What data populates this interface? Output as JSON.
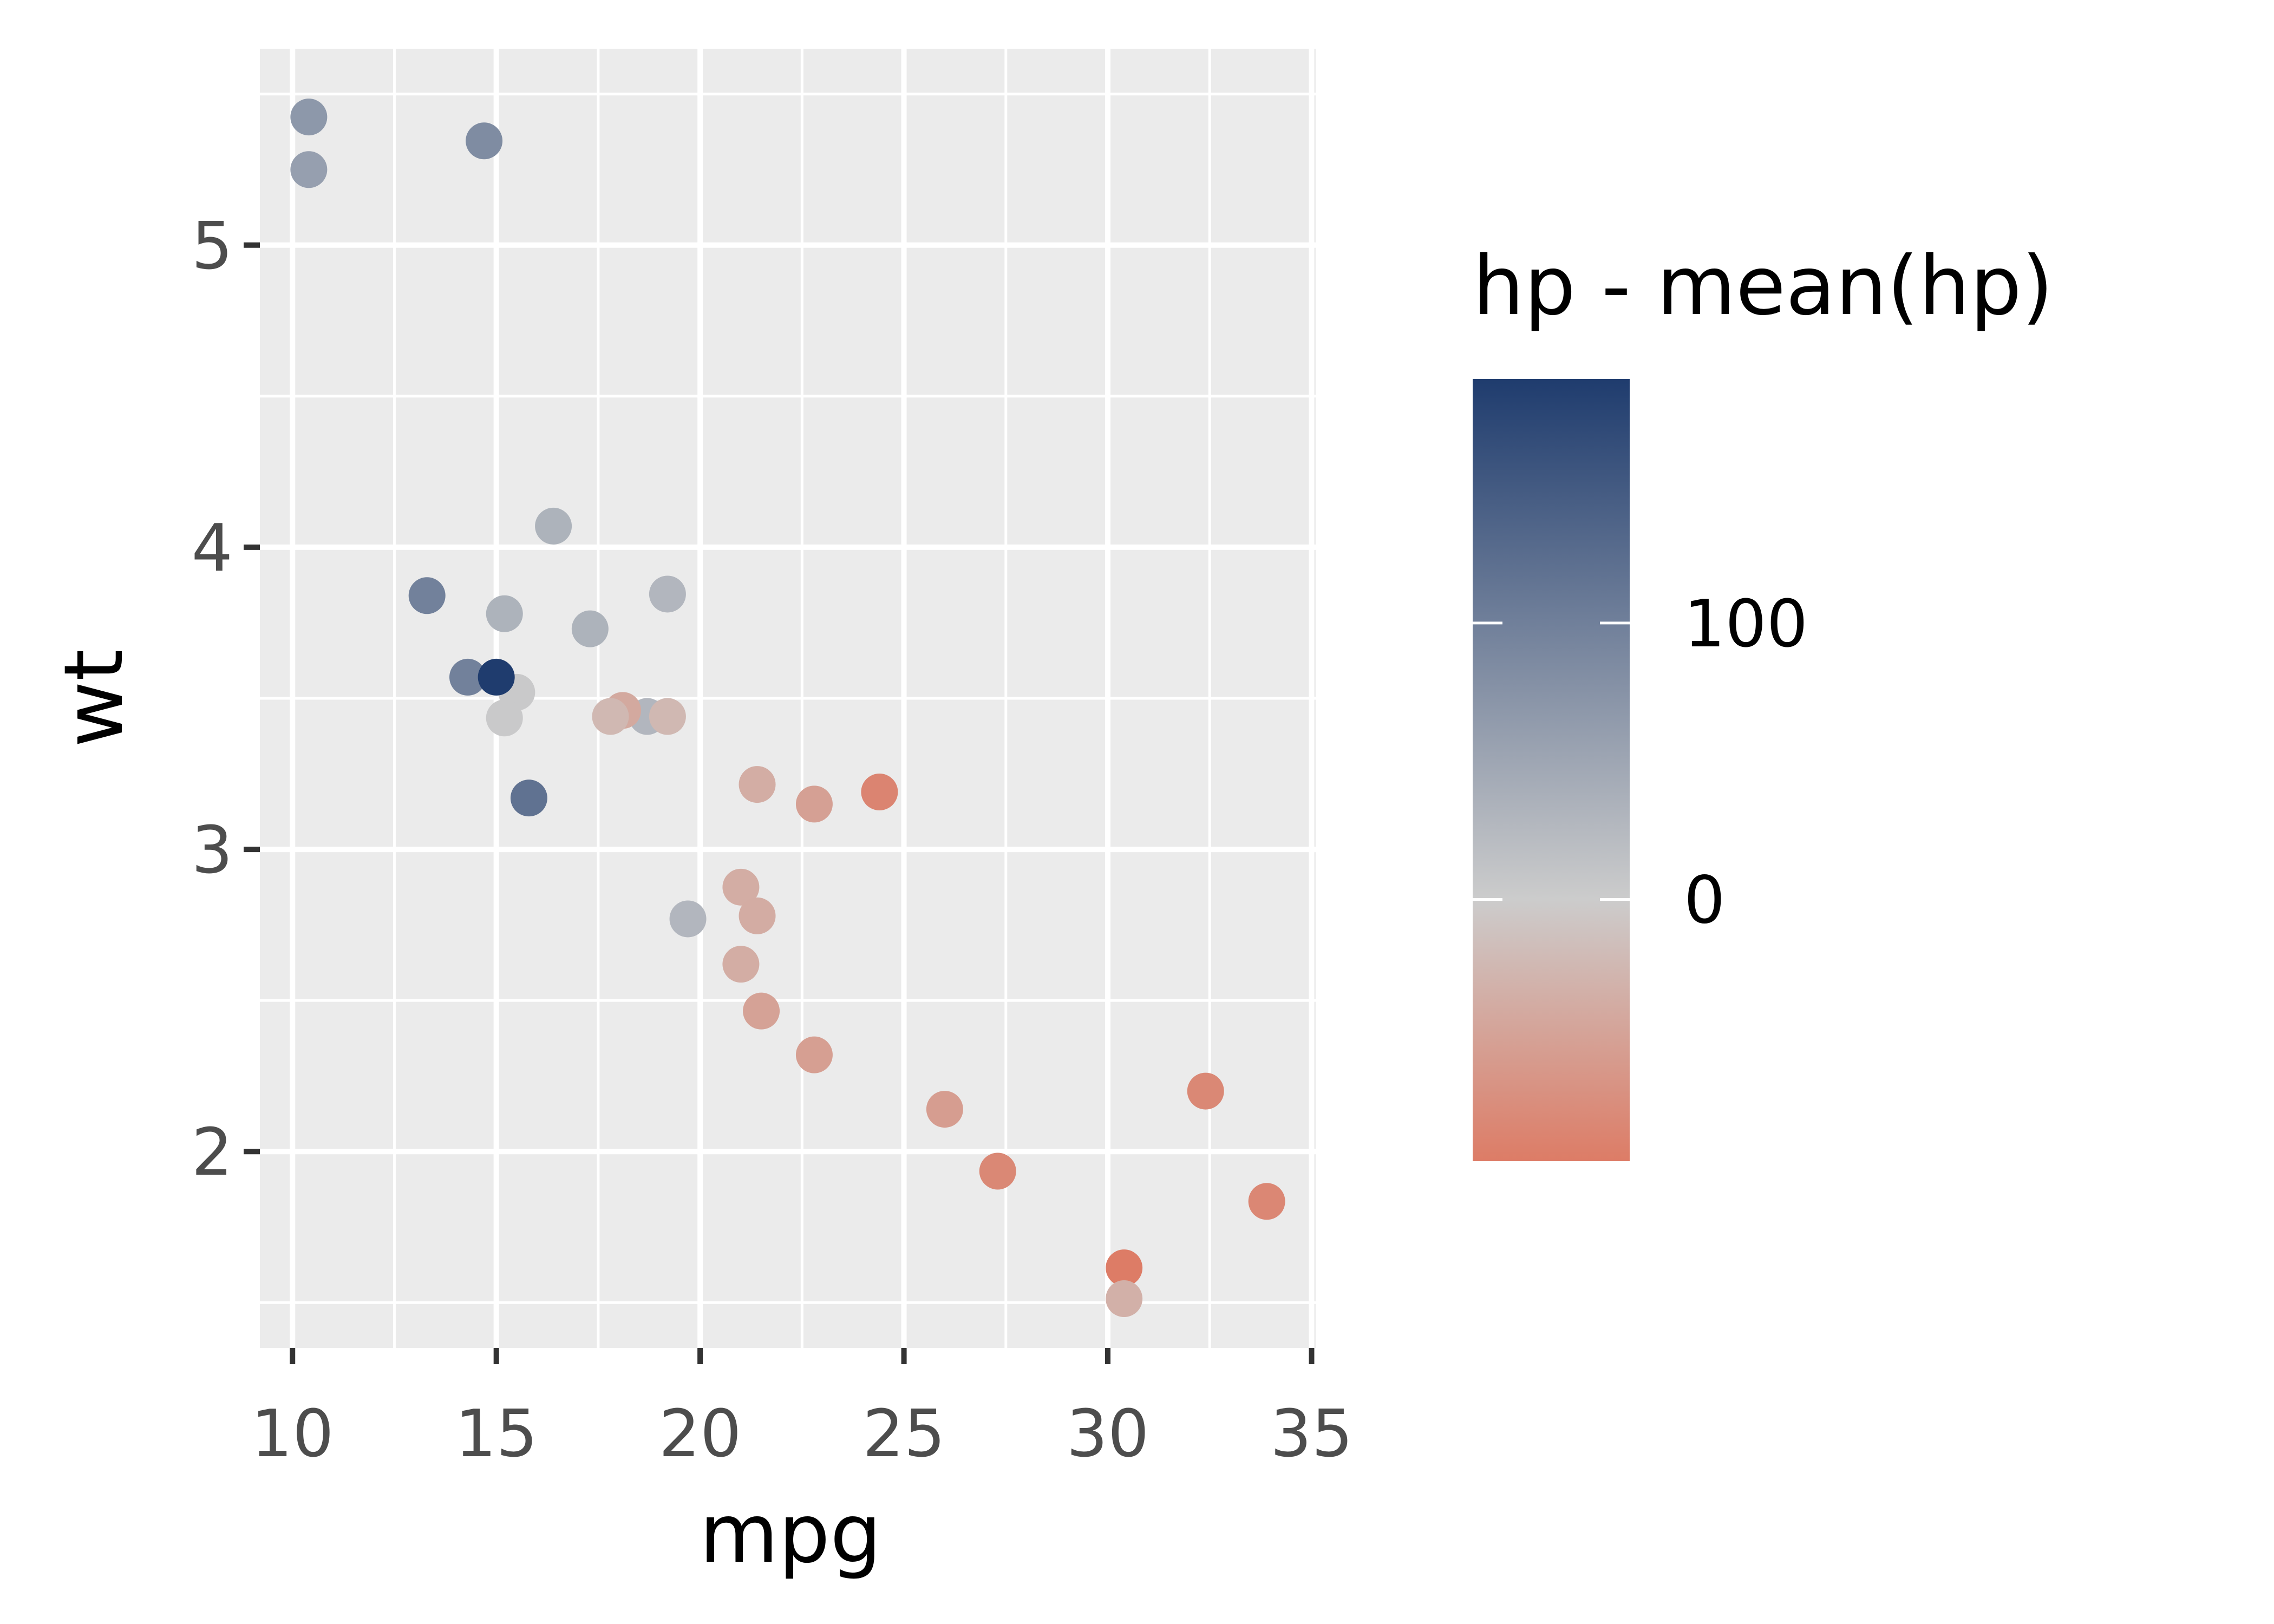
{
  "chart_data": {
    "type": "scatter",
    "title": "",
    "xlabel": "mpg",
    "ylabel": "wt",
    "xlim": [
      9.2,
      35.1
    ],
    "ylim": [
      1.35,
      5.65
    ],
    "x_ticks": [
      10,
      15,
      20,
      25,
      30,
      35
    ],
    "y_ticks": [
      2,
      3,
      4,
      5
    ],
    "grid": true,
    "colorbar": {
      "title": "hp - mean(hp)",
      "range": [
        -94.7,
        188.3
      ],
      "ticks": [
        0,
        100
      ],
      "low_color": "#dd7c66",
      "mid_color": "#cccccc",
      "high_color": "#1f3c6e"
    },
    "points": [
      {
        "x": 21.0,
        "y": 2.62,
        "c": -36.7
      },
      {
        "x": 21.0,
        "y": 2.875,
        "c": -36.7
      },
      {
        "x": 22.8,
        "y": 2.32,
        "c": -53.7
      },
      {
        "x": 21.4,
        "y": 3.215,
        "c": -36.7
      },
      {
        "x": 18.7,
        "y": 3.44,
        "c": 28.3
      },
      {
        "x": 18.1,
        "y": 3.46,
        "c": -41.7
      },
      {
        "x": 14.3,
        "y": 3.57,
        "c": 98.3
      },
      {
        "x": 24.4,
        "y": 3.19,
        "c": -84.7
      },
      {
        "x": 22.8,
        "y": 3.15,
        "c": -51.7
      },
      {
        "x": 19.2,
        "y": 3.44,
        "c": -23.7
      },
      {
        "x": 17.8,
        "y": 3.44,
        "c": -23.7
      },
      {
        "x": 16.4,
        "y": 4.07,
        "c": 33.3
      },
      {
        "x": 17.3,
        "y": 3.73,
        "c": 33.3
      },
      {
        "x": 15.2,
        "y": 3.78,
        "c": 33.3
      },
      {
        "x": 10.4,
        "y": 5.25,
        "c": 58.3
      },
      {
        "x": 10.4,
        "y": 5.424,
        "c": 68.3
      },
      {
        "x": 14.7,
        "y": 5.345,
        "c": 83.3
      },
      {
        "x": 32.4,
        "y": 2.2,
        "c": -80.7
      },
      {
        "x": 30.4,
        "y": 1.615,
        "c": -94.7
      },
      {
        "x": 33.9,
        "y": 1.835,
        "c": -81.7
      },
      {
        "x": 21.5,
        "y": 2.465,
        "c": -49.7
      },
      {
        "x": 15.5,
        "y": 3.52,
        "c": 3.3
      },
      {
        "x": 15.2,
        "y": 3.435,
        "c": 3.3
      },
      {
        "x": 13.3,
        "y": 3.84,
        "c": 98.3
      },
      {
        "x": 19.2,
        "y": 3.845,
        "c": 28.3
      },
      {
        "x": 27.3,
        "y": 1.935,
        "c": -80.7
      },
      {
        "x": 26.0,
        "y": 2.14,
        "c": -55.7
      },
      {
        "x": 30.4,
        "y": 1.513,
        "c": -33.7
      },
      {
        "x": 15.8,
        "y": 3.17,
        "c": 117.3
      },
      {
        "x": 19.7,
        "y": 2.77,
        "c": 28.3
      },
      {
        "x": 21.4,
        "y": 2.78,
        "c": -37.7
      },
      {
        "x": 15.0,
        "y": 3.57,
        "c": 188.3
      }
    ]
  }
}
